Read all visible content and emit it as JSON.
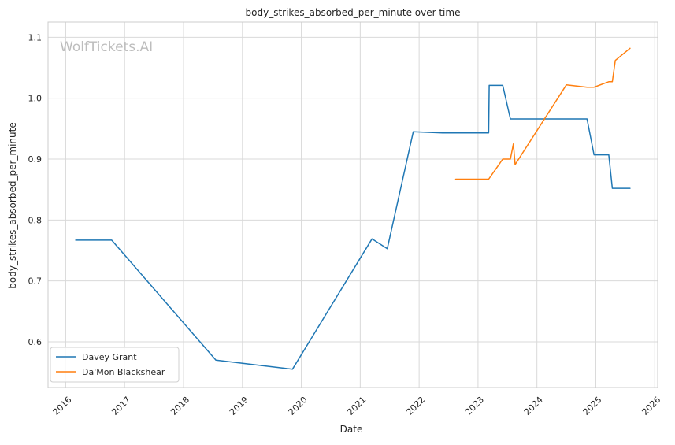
{
  "chart_data": {
    "type": "line",
    "title": "body_strikes_absorbed_per_minute over time",
    "xlabel": "Date",
    "ylabel": "body_strikes_absorbed_per_minute",
    "watermark": "WolfTickets.AI",
    "grid": true,
    "legend_position": "bottom-left",
    "xlim": [
      2015.7,
      2026.05
    ],
    "ylim": [
      0.525,
      1.125
    ],
    "x_ticks": [
      2016,
      2017,
      2018,
      2019,
      2020,
      2021,
      2022,
      2023,
      2024,
      2025,
      2026
    ],
    "x_tick_labels": [
      "2016",
      "2017",
      "2018",
      "2019",
      "2020",
      "2021",
      "2022",
      "2023",
      "2024",
      "2025",
      "2026"
    ],
    "y_ticks": [
      0.6,
      0.7,
      0.8,
      0.9,
      1.0,
      1.1
    ],
    "y_tick_labels": [
      "0.6",
      "0.7",
      "0.8",
      "0.9",
      "1.0",
      "1.1"
    ],
    "series": [
      {
        "name": "Davey Grant",
        "color": "#1f77b4",
        "points": [
          [
            2016.17,
            0.767
          ],
          [
            2016.78,
            0.767
          ],
          [
            2018.55,
            0.57
          ],
          [
            2019.85,
            0.555
          ],
          [
            2021.2,
            0.769
          ],
          [
            2021.46,
            0.753
          ],
          [
            2021.9,
            0.945
          ],
          [
            2022.4,
            0.943
          ],
          [
            2023.18,
            0.943
          ],
          [
            2023.19,
            1.021
          ],
          [
            2023.42,
            1.021
          ],
          [
            2023.55,
            0.966
          ],
          [
            2024.85,
            0.966
          ],
          [
            2024.97,
            0.907
          ],
          [
            2025.22,
            0.907
          ],
          [
            2025.28,
            0.852
          ],
          [
            2025.58,
            0.852
          ]
        ]
      },
      {
        "name": "Da'Mon Blackshear",
        "color": "#ff7f0e",
        "points": [
          [
            2022.62,
            0.867
          ],
          [
            2023.18,
            0.867
          ],
          [
            2023.42,
            0.9
          ],
          [
            2023.55,
            0.9
          ],
          [
            2023.6,
            0.925
          ],
          [
            2023.63,
            0.891
          ],
          [
            2024.5,
            1.022
          ],
          [
            2024.85,
            1.018
          ],
          [
            2024.97,
            1.018
          ],
          [
            2025.22,
            1.027
          ],
          [
            2025.28,
            1.027
          ],
          [
            2025.33,
            1.062
          ],
          [
            2025.58,
            1.082
          ]
        ]
      }
    ]
  }
}
